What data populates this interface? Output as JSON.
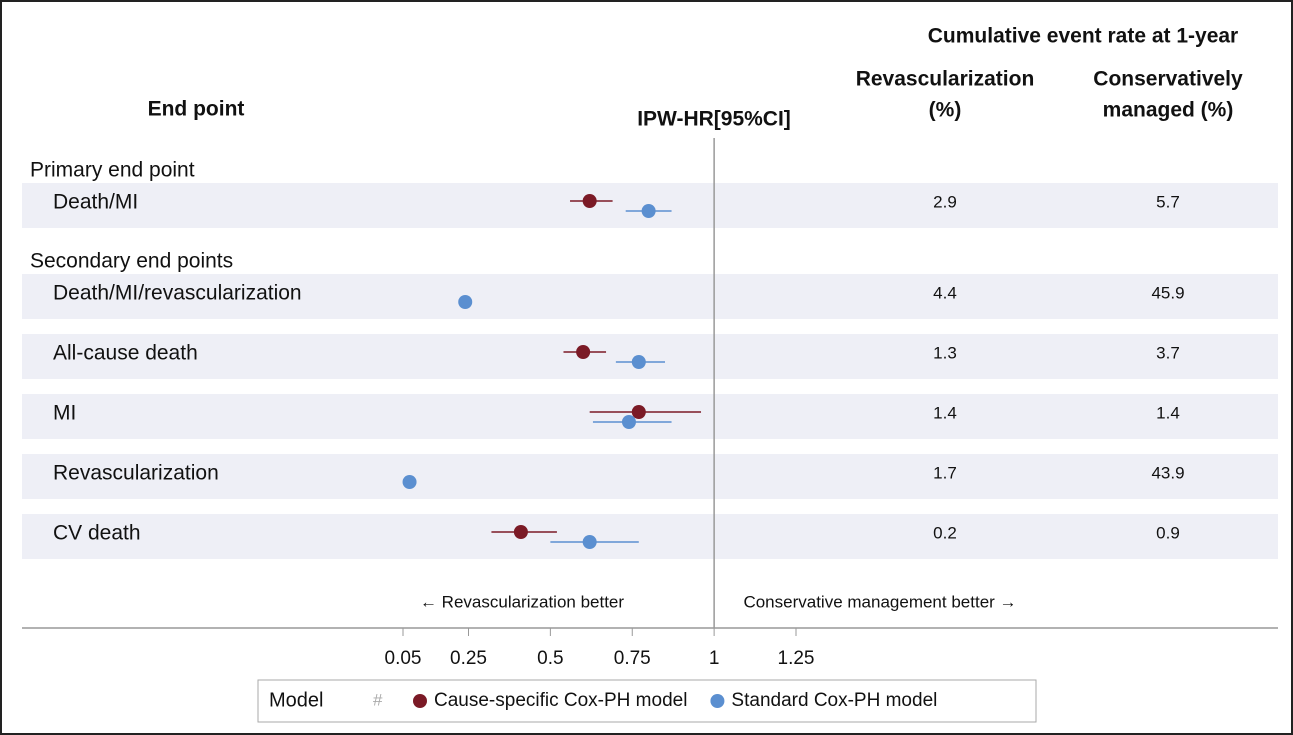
{
  "chart_data": {
    "type": "forest",
    "header": {
      "endpoint": "End point",
      "estimate": "IPW-HR[95%CI]",
      "rates": "Cumulative event rate at 1-year"
    },
    "categories": [
      "Primary end point",
      "Death/MI",
      "Secondary end points",
      "Death/MI/revascularization",
      "All-cause death",
      "MI",
      "Revascularization",
      "CV death"
    ],
    "series": [
      {
        "name": "Cause-specific Cox-PH model",
        "color": "#7b1a26",
        "values": [
          null,
          0.62,
          null,
          null,
          0.6,
          0.77,
          null,
          0.41
        ],
        "lower": [
          null,
          0.56,
          null,
          null,
          0.54,
          0.62,
          null,
          0.32
        ],
        "upper": [
          null,
          0.69,
          null,
          null,
          0.67,
          0.96,
          null,
          0.52
        ]
      },
      {
        "name": "Standard Cox-PH model",
        "color": "#5b8fd0",
        "values": [
          null,
          0.8,
          null,
          0.24,
          0.77,
          0.74,
          0.07,
          0.62
        ],
        "lower": [
          null,
          0.73,
          null,
          null,
          0.7,
          0.63,
          null,
          0.5
        ],
        "upper": [
          null,
          0.87,
          null,
          null,
          0.85,
          0.87,
          null,
          0.77
        ]
      }
    ],
    "columns": [
      {
        "name": [
          "Revascularization",
          "(%)"
        ],
        "values": [
          null,
          2.9,
          null,
          4.4,
          1.3,
          1.4,
          1.7,
          0.2
        ]
      },
      {
        "name": [
          "Conservatively",
          "managed (%)"
        ],
        "values": [
          null,
          5.7,
          null,
          45.9,
          3.7,
          1.4,
          43.9,
          0.9
        ]
      }
    ],
    "xlim": [
      0.05,
      1.25
    ],
    "xticks": [
      0.05,
      0.25,
      0.5,
      0.75,
      1,
      1.25
    ],
    "reference": 1,
    "left_label": "← Revascularization better",
    "right_label": "Conservative management better →",
    "legend_title": "Model",
    "legend_symbol": "#"
  }
}
